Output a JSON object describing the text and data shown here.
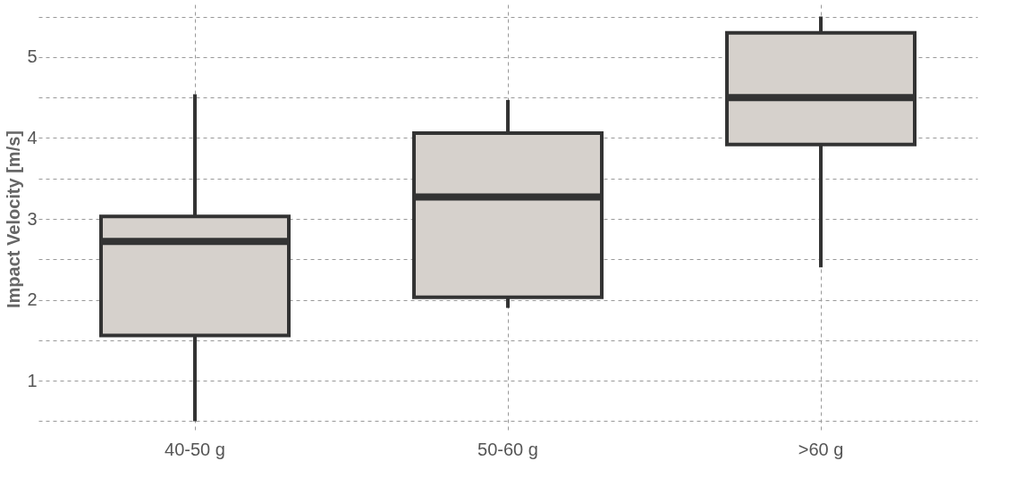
{
  "chart_data": {
    "type": "box",
    "ylabel": "Impact Velocity [m/s]",
    "categories": [
      "40-50 g",
      "50-60 g",
      ">60 g"
    ],
    "color": "#d6d1cc",
    "boxes": [
      {
        "low": 0.5,
        "q1": 1.56,
        "median": 2.72,
        "q3": 3.03,
        "high": 4.54
      },
      {
        "low": 1.9,
        "q1": 2.03,
        "median": 3.27,
        "q3": 4.06,
        "high": 4.47
      },
      {
        "low": 2.4,
        "q1": 3.92,
        "median": 4.5,
        "q3": 5.3,
        "high": 5.5
      }
    ],
    "ylim": [
      0.35,
      5.65
    ],
    "yticks": [
      {
        "value": 0.5,
        "label": null
      },
      1,
      {
        "value": 1.5,
        "label": null
      },
      2,
      {
        "value": 2.5,
        "label": null
      },
      3,
      {
        "value": 3.5,
        "label": null
      },
      4,
      {
        "value": 4.5,
        "label": null
      },
      5,
      {
        "value": 5.5,
        "label": null
      }
    ],
    "grid": true
  }
}
